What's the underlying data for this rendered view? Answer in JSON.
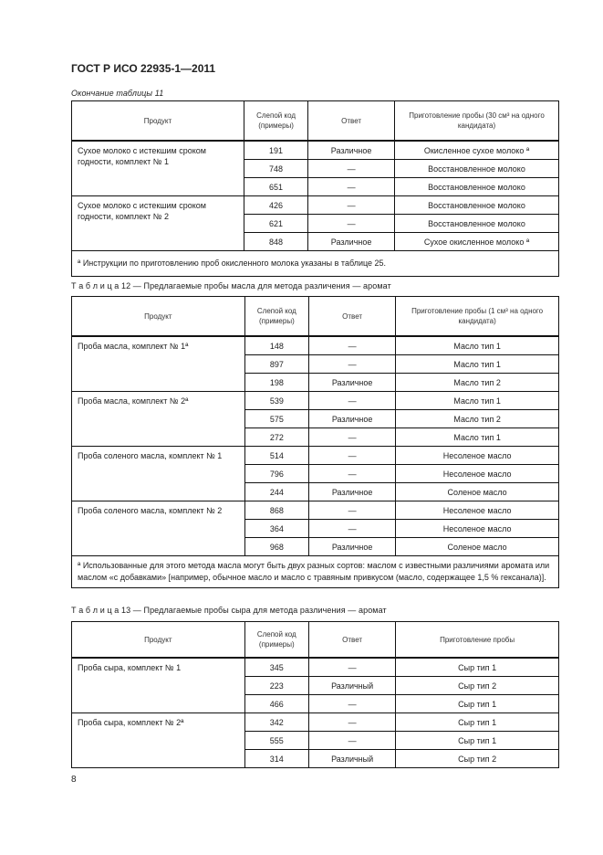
{
  "header": {
    "title": "ГОСТ Р ИСО 22935-1—2011"
  },
  "tables": [
    {
      "caption": "Окончание таблицы 11",
      "italic": true,
      "headers": [
        "Продукт",
        "Слепой код (примеры)",
        "Ответ",
        "Приготовление пробы (30 см³ на одного кандидата)"
      ],
      "groups": [
        {
          "product": "Сухое молоко с истекшим сроком годности, комплект № 1",
          "rows": [
            [
              "191",
              "Различное",
              "Окисленное сухое молоко ª"
            ],
            [
              "748",
              "—",
              "Восстановленное молоко"
            ],
            [
              "651",
              "—",
              "Восстановленное молоко"
            ]
          ]
        },
        {
          "product": "Сухое молоко с истекшим сроком годности, комплект № 2",
          "rows": [
            [
              "426",
              "—",
              "Восстановленное молоко"
            ],
            [
              "621",
              "—",
              "Восстановленное молоко"
            ],
            [
              "848",
              "Различное",
              "Сухое окисленное молоко ª"
            ]
          ]
        }
      ],
      "footnote": "ª Инструкции по приготовлению проб окисленного молока указаны в таблице 25."
    },
    {
      "caption": "Т а б л и ц а   12 — Предлагаемые пробы масла для метода различения — аромат",
      "italic": false,
      "headers": [
        "Продукт",
        "Слепой код (примеры)",
        "Ответ",
        "Приготовление пробы (1 см³ на одного кандидата)"
      ],
      "groups": [
        {
          "product": "Проба масла, комплект № 1ª",
          "rows": [
            [
              "148",
              "—",
              "Масло тип 1"
            ],
            [
              "897",
              "—",
              "Масло тип 1"
            ],
            [
              "198",
              "Различное",
              "Масло тип 2"
            ]
          ]
        },
        {
          "product": "Проба масла, комплект № 2ª",
          "rows": [
            [
              "539",
              "—",
              "Масло тип 1"
            ],
            [
              "575",
              "Различное",
              "Масло тип 2"
            ],
            [
              "272",
              "—",
              "Масло тип 1"
            ]
          ]
        },
        {
          "product": "Проба соленого масла, комплект № 1",
          "rows": [
            [
              "514",
              "—",
              "Несоленое масло"
            ],
            [
              "796",
              "—",
              "Несоленое масло"
            ],
            [
              "244",
              "Различное",
              "Соленое масло"
            ]
          ]
        },
        {
          "product": "Проба соленого масла, комплект № 2",
          "rows": [
            [
              "868",
              "—",
              "Несоленое масло"
            ],
            [
              "364",
              "—",
              "Несоленое масло"
            ],
            [
              "968",
              "Различное",
              "Соленое масло"
            ]
          ]
        }
      ],
      "footnote": "ª Использованные для этого метода масла могут быть двух разных сортов: маслом с известными различиями аромата или маслом «с добавками» [например, обычное масло и масло с травяным привкусом (масло, содержащее 1,5 % гексанала)]."
    },
    {
      "caption": "Т а б л и ц а   13 — Предлагаемые пробы сыра для метода различения — аромат",
      "italic": false,
      "headers": [
        "Продукт",
        "Слепой код (примеры)",
        "Ответ",
        "Приготовление пробы"
      ],
      "groups": [
        {
          "product": "Проба сыра, комплект № 1",
          "rows": [
            [
              "345",
              "—",
              "Сыр тип 1"
            ],
            [
              "223",
              "Различный",
              "Сыр тип 2"
            ],
            [
              "466",
              "—",
              "Сыр тип 1"
            ]
          ]
        },
        {
          "product": "Проба сыра, комплект № 2ª",
          "rows": [
            [
              "342",
              "—",
              "Сыр тип 1"
            ],
            [
              "555",
              "—",
              "Сыр тип 1"
            ],
            [
              "314",
              "Различный",
              "Сыр тип 2"
            ]
          ]
        }
      ]
    }
  ],
  "footer": {
    "page_number": "8"
  }
}
